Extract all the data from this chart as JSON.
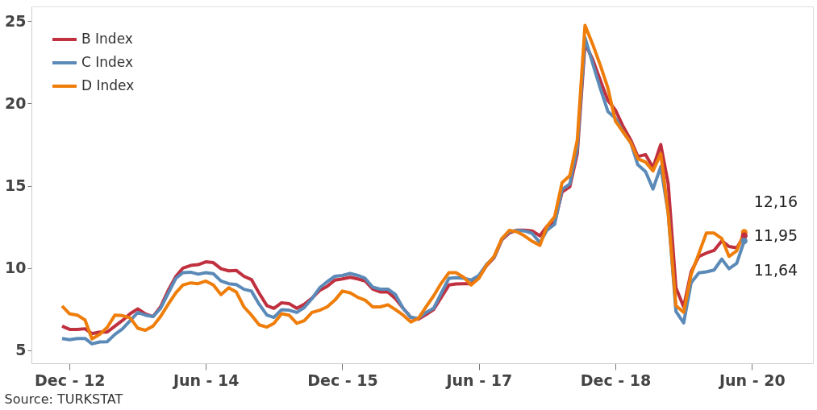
{
  "chart_data": {
    "type": "line",
    "x": [
      "2012-11",
      "2012-12",
      "2013-01",
      "2013-02",
      "2013-03",
      "2013-04",
      "2013-05",
      "2013-06",
      "2013-07",
      "2013-08",
      "2013-09",
      "2013-10",
      "2013-11",
      "2013-12",
      "2014-01",
      "2014-02",
      "2014-03",
      "2014-04",
      "2014-05",
      "2014-06",
      "2014-07",
      "2014-08",
      "2014-09",
      "2014-10",
      "2014-11",
      "2014-12",
      "2015-01",
      "2015-02",
      "2015-03",
      "2015-04",
      "2015-05",
      "2015-06",
      "2015-07",
      "2015-08",
      "2015-09",
      "2015-10",
      "2015-11",
      "2015-12",
      "2016-01",
      "2016-02",
      "2016-03",
      "2016-04",
      "2016-05",
      "2016-06",
      "2016-07",
      "2016-08",
      "2016-09",
      "2016-10",
      "2016-11",
      "2016-12",
      "2017-01",
      "2017-02",
      "2017-03",
      "2017-04",
      "2017-05",
      "2017-06",
      "2017-07",
      "2017-08",
      "2017-09",
      "2017-10",
      "2017-11",
      "2017-12",
      "2018-01",
      "2018-02",
      "2018-03",
      "2018-04",
      "2018-05",
      "2018-06",
      "2018-07",
      "2018-08",
      "2018-09",
      "2018-10",
      "2018-11",
      "2018-12",
      "2019-01",
      "2019-02",
      "2019-03",
      "2019-04",
      "2019-05",
      "2019-06",
      "2019-07",
      "2019-08",
      "2019-09",
      "2019-10",
      "2019-11",
      "2019-12",
      "2020-01",
      "2020-02",
      "2020-03",
      "2020-04",
      "2020-05"
    ],
    "series": [
      {
        "name": "B Index",
        "color": "#c0303f",
        "values": [
          6.46,
          6.26,
          6.26,
          6.3,
          6.0,
          6.1,
          6.1,
          6.46,
          6.8,
          7.21,
          7.51,
          7.21,
          7.04,
          7.63,
          8.63,
          9.49,
          9.99,
          10.15,
          10.2,
          10.37,
          10.32,
          9.95,
          9.82,
          9.85,
          9.49,
          9.29,
          8.46,
          7.71,
          7.54,
          7.88,
          7.83,
          7.54,
          7.79,
          8.16,
          8.63,
          8.88,
          9.26,
          9.33,
          9.43,
          9.33,
          9.21,
          8.71,
          8.54,
          8.54,
          8.13,
          7.54,
          6.99,
          6.88,
          7.16,
          7.46,
          8.21,
          8.96,
          9.02,
          9.04,
          9.04,
          9.43,
          10.12,
          10.62,
          11.7,
          12.12,
          12.3,
          12.3,
          12.25,
          11.95,
          12.53,
          12.78,
          14.61,
          14.94,
          16.94,
          23.65,
          22.67,
          21.42,
          20.18,
          19.6,
          18.6,
          17.77,
          16.77,
          16.89,
          16.1,
          17.5,
          15.1,
          8.79,
          7.63,
          9.77,
          10.7,
          10.9,
          11.06,
          11.65,
          11.3,
          11.22,
          11.95
        ],
        "value_labels": [
          null,
          null,
          null,
          null,
          null,
          null,
          null,
          null,
          null,
          null,
          null,
          null,
          null,
          null,
          null,
          null,
          null,
          null,
          null,
          null,
          null,
          null,
          null,
          null,
          null,
          null,
          null,
          null,
          null,
          null,
          null,
          null,
          null,
          null,
          null,
          null,
          null,
          null,
          null,
          null,
          null,
          null,
          null,
          null,
          null,
          null,
          null,
          null,
          null,
          null,
          null,
          null,
          null,
          null,
          null,
          null,
          null,
          null,
          null,
          null,
          null,
          null,
          null,
          null,
          null,
          null,
          null,
          null,
          null,
          null,
          null,
          null,
          null,
          null,
          null,
          null,
          null,
          null,
          null,
          null,
          null,
          null,
          null,
          null,
          null,
          null,
          null,
          null,
          null,
          null,
          "11,95"
        ]
      },
      {
        "name": "C Index",
        "color": "#5b8ab8",
        "values": [
          5.71,
          5.63,
          5.71,
          5.71,
          5.38,
          5.5,
          5.51,
          5.96,
          6.29,
          6.79,
          7.29,
          7.13,
          7.04,
          7.54,
          8.46,
          9.37,
          9.71,
          9.74,
          9.62,
          9.71,
          9.65,
          9.2,
          9.04,
          8.99,
          8.7,
          8.59,
          7.79,
          7.13,
          6.99,
          7.46,
          7.43,
          7.29,
          7.59,
          8.13,
          8.79,
          9.16,
          9.49,
          9.54,
          9.66,
          9.54,
          9.37,
          8.83,
          8.71,
          8.71,
          8.38,
          7.54,
          6.99,
          6.93,
          7.29,
          7.54,
          8.46,
          9.37,
          9.41,
          9.37,
          9.26,
          9.54,
          10.2,
          10.65,
          11.75,
          12.2,
          12.28,
          12.25,
          12.1,
          11.53,
          12.28,
          12.65,
          14.78,
          15.11,
          17.27,
          24.0,
          22.42,
          20.93,
          19.51,
          19.1,
          18.27,
          17.6,
          16.27,
          15.86,
          14.8,
          16.16,
          13.33,
          7.35,
          6.66,
          9.1,
          9.7,
          9.76,
          9.87,
          10.54,
          9.95,
          10.28,
          11.64
        ],
        "value_labels": [
          null,
          null,
          null,
          null,
          null,
          null,
          null,
          null,
          null,
          null,
          null,
          null,
          null,
          null,
          null,
          null,
          null,
          null,
          null,
          null,
          null,
          null,
          null,
          null,
          null,
          null,
          null,
          null,
          null,
          null,
          null,
          null,
          null,
          null,
          null,
          null,
          null,
          null,
          null,
          null,
          null,
          null,
          null,
          null,
          null,
          null,
          null,
          null,
          null,
          null,
          null,
          null,
          null,
          null,
          null,
          null,
          null,
          null,
          null,
          null,
          null,
          null,
          null,
          null,
          null,
          null,
          null,
          null,
          null,
          null,
          null,
          null,
          null,
          null,
          null,
          null,
          null,
          null,
          null,
          null,
          null,
          null,
          null,
          null,
          null,
          null,
          null,
          null,
          null,
          null,
          "11,64"
        ]
      },
      {
        "name": "D Index",
        "color": "#ef7d0a",
        "values": [
          7.68,
          7.21,
          7.13,
          6.83,
          5.68,
          5.96,
          6.38,
          7.13,
          7.1,
          6.96,
          6.33,
          6.21,
          6.46,
          7.04,
          7.79,
          8.49,
          8.96,
          9.09,
          9.04,
          9.2,
          8.96,
          8.38,
          8.79,
          8.54,
          7.63,
          7.13,
          6.54,
          6.4,
          6.63,
          7.21,
          7.13,
          6.63,
          6.79,
          7.29,
          7.43,
          7.63,
          8.04,
          8.59,
          8.49,
          8.21,
          8.04,
          7.63,
          7.63,
          7.76,
          7.46,
          7.13,
          6.71,
          6.93,
          7.63,
          8.29,
          9.07,
          9.71,
          9.71,
          9.43,
          8.96,
          9.37,
          10.15,
          10.7,
          11.78,
          12.28,
          12.2,
          11.95,
          11.62,
          11.37,
          12.53,
          13.11,
          15.19,
          15.61,
          17.77,
          24.75,
          23.59,
          22.34,
          20.93,
          18.93,
          18.27,
          17.6,
          16.64,
          16.44,
          15.9,
          16.95,
          13.3,
          7.7,
          7.3,
          9.6,
          10.88,
          12.12,
          12.12,
          11.79,
          10.7,
          11.04,
          12.16
        ],
        "value_labels": [
          null,
          null,
          null,
          null,
          null,
          null,
          null,
          null,
          null,
          null,
          null,
          null,
          null,
          null,
          null,
          null,
          null,
          null,
          null,
          null,
          null,
          null,
          null,
          null,
          null,
          null,
          null,
          null,
          null,
          null,
          null,
          null,
          null,
          null,
          null,
          null,
          null,
          null,
          null,
          null,
          null,
          null,
          null,
          null,
          null,
          null,
          null,
          null,
          null,
          null,
          null,
          null,
          null,
          null,
          null,
          null,
          null,
          null,
          null,
          null,
          null,
          null,
          null,
          null,
          null,
          null,
          null,
          null,
          null,
          null,
          null,
          null,
          null,
          null,
          null,
          null,
          null,
          null,
          null,
          null,
          null,
          null,
          null,
          null,
          null,
          null,
          null,
          null,
          null,
          null,
          "12,16"
        ]
      }
    ],
    "xlim": [
      "2012-07",
      "2021-02"
    ],
    "xticks": [
      {
        "value": "2012-12",
        "label": "Dec - 12"
      },
      {
        "value": "2014-06",
        "label": "Jun - 14"
      },
      {
        "value": "2015-12",
        "label": "Dec - 15"
      },
      {
        "value": "2017-06",
        "label": "Jun - 17"
      },
      {
        "value": "2018-12",
        "label": "Dec - 18"
      },
      {
        "value": "2020-06",
        "label": "Jun - 20"
      }
    ],
    "ylim": [
      4.2,
      25.9
    ],
    "yticks": [
      5,
      10,
      15,
      20,
      25
    ],
    "grid": false,
    "legend": "top left",
    "line_style": "solid",
    "annotations": [
      "Source: TURKSTAT"
    ]
  }
}
